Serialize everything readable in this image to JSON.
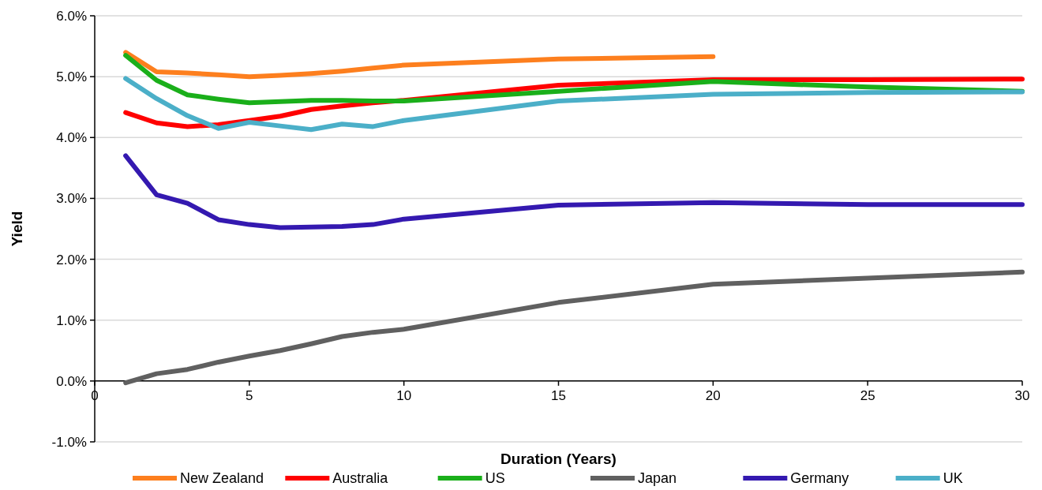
{
  "chart_data": {
    "type": "line",
    "xlabel": "Duration (Years)",
    "ylabel": "Yield",
    "x": [
      1,
      2,
      3,
      4,
      5,
      6,
      7,
      8,
      9,
      10,
      15,
      20,
      25,
      30
    ],
    "series": [
      {
        "name": "New Zealand",
        "color": "#fd7f1e",
        "x": [
          1,
          2,
          3,
          4,
          5,
          6,
          7,
          8,
          9,
          10,
          15,
          20
        ],
        "values": [
          5.4,
          5.08,
          5.06,
          5.03,
          5.0,
          5.02,
          5.05,
          5.09,
          5.14,
          5.19,
          5.29,
          5.33
        ]
      },
      {
        "name": "Australia",
        "color": "#ff0000",
        "values": [
          4.41,
          4.24,
          4.18,
          4.21,
          4.28,
          4.35,
          4.46,
          4.52,
          4.57,
          4.61,
          4.86,
          4.95,
          4.95,
          4.96
        ]
      },
      {
        "name": "US",
        "color": "#1aaf1a",
        "values": [
          5.35,
          4.94,
          4.7,
          4.63,
          4.57,
          4.59,
          4.61,
          4.61,
          4.6,
          4.6,
          4.76,
          4.92,
          4.83,
          4.76
        ]
      },
      {
        "name": "Japan",
        "color": "#606060",
        "values": [
          -0.03,
          0.12,
          0.19,
          0.31,
          0.41,
          0.5,
          0.61,
          0.73,
          0.8,
          0.85,
          1.29,
          1.59,
          1.69,
          1.79
        ]
      },
      {
        "name": "Germany",
        "color": "#3419b0",
        "values": [
          3.7,
          3.06,
          2.92,
          2.65,
          2.57,
          2.52,
          2.53,
          2.54,
          2.57,
          2.66,
          2.89,
          2.93,
          2.9,
          2.9
        ]
      },
      {
        "name": "UK",
        "color": "#4bafc8",
        "values": [
          4.97,
          4.64,
          4.36,
          4.15,
          4.25,
          4.19,
          4.13,
          4.22,
          4.18,
          4.28,
          4.6,
          4.71,
          4.74,
          4.75
        ]
      }
    ],
    "xlim": [
      0,
      30
    ],
    "xticks": [
      0,
      5,
      10,
      15,
      20,
      25,
      30
    ],
    "ylim": [
      -1,
      6
    ],
    "yticks": [
      {
        "value": -1,
        "label": "-1.0%"
      },
      {
        "value": 0,
        "label": "0.0%"
      },
      {
        "value": 1,
        "label": "1.0%"
      },
      {
        "value": 2,
        "label": "2.0%"
      },
      {
        "value": 3,
        "label": "3.0%"
      },
      {
        "value": 4,
        "label": "4.0%"
      },
      {
        "value": 5,
        "label": "5.0%"
      },
      {
        "value": 6,
        "label": "6.0%"
      }
    ],
    "grid": "y",
    "legend": "bottom",
    "line_style": "solid",
    "marker": "none"
  }
}
